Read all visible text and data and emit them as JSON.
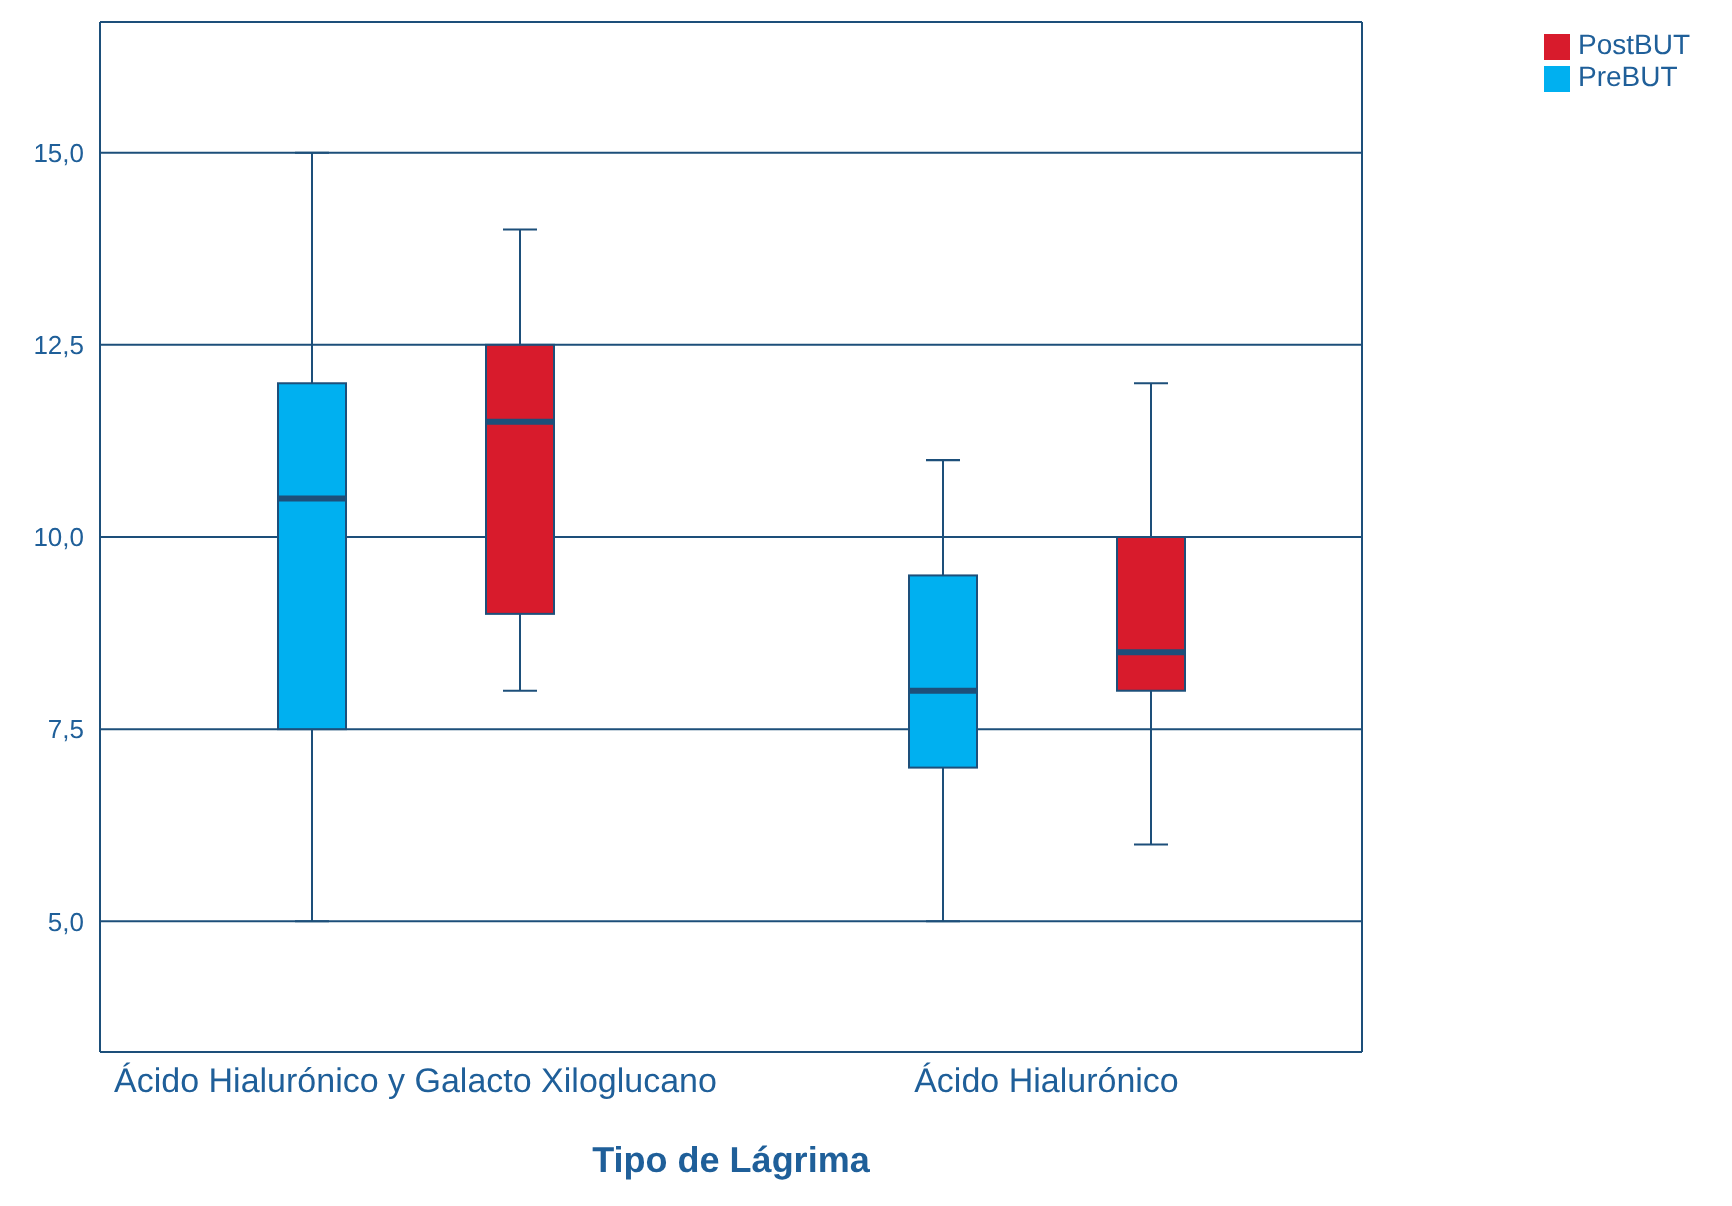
{
  "chart_data": {
    "type": "box",
    "xlabel": "Tipo de Lágrima",
    "categories": [
      "Ácido Hialurónico y Galacto Xiloglucano",
      "Ácido Hialurónico"
    ],
    "series": [
      {
        "name": "PreBUT",
        "color": "#00b0f0",
        "boxes": [
          {
            "low": 5,
            "q1": 7.5,
            "median": 10.5,
            "q3": 12,
            "high": 15
          },
          {
            "low": 5,
            "q1": 7,
            "median": 8,
            "q3": 9.5,
            "high": 11
          }
        ]
      },
      {
        "name": "PostBUT",
        "color": "#d81b2c",
        "boxes": [
          {
            "low": 8,
            "q1": 9,
            "median": 11.5,
            "q3": 12.5,
            "high": 14
          },
          {
            "low": 6,
            "q1": 8,
            "median": 8.5,
            "q3": 10,
            "high": 12
          }
        ]
      }
    ],
    "ylim": [
      3.3,
      16.7
    ],
    "yticks": [
      {
        "value": 5,
        "label": "5,0"
      },
      {
        "value": 7.5,
        "label": "7,5"
      },
      {
        "value": 10,
        "label": "10,0"
      },
      {
        "value": 12.5,
        "label": "12,5"
      },
      {
        "value": 15,
        "label": "15,0"
      }
    ],
    "grid": "y",
    "legend": "top right"
  }
}
